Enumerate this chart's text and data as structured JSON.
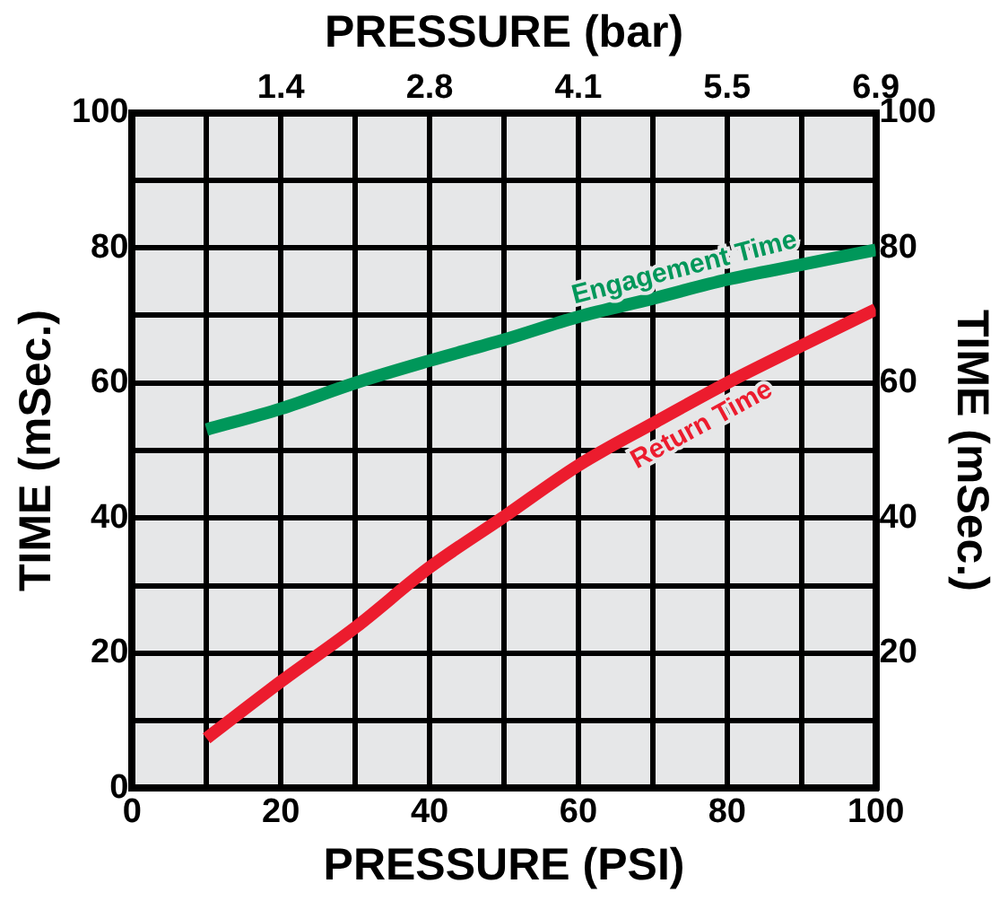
{
  "chart_data": {
    "type": "line",
    "xlabel": "PRESSURE (PSI)",
    "ylabel": "TIME (mSec.)",
    "y2label": "TIME (mSec.)",
    "x2label": "PRESSURE (bar)",
    "xlim": [
      0,
      100
    ],
    "xticks": [
      0,
      {
        "value": 10,
        "label": null
      },
      20,
      {
        "value": 30,
        "label": null
      },
      40,
      {
        "value": 50,
        "label": null
      },
      60,
      {
        "value": 70,
        "label": null
      },
      80,
      {
        "value": 90,
        "label": null
      },
      100
    ],
    "x2lim": [
      0,
      6.895
    ],
    "x2ticks": [
      {
        "value": 1.379,
        "label": "1.4"
      },
      {
        "value": 2.758,
        "label": "2.8"
      },
      {
        "value": 4.137,
        "label": "4.1"
      },
      {
        "value": 5.516,
        "label": "5.5"
      },
      {
        "value": 6.895,
        "label": "6.9"
      }
    ],
    "ylim": [
      0,
      100
    ],
    "yticks": [
      0,
      {
        "value": 10,
        "label": null
      },
      20,
      {
        "value": 30,
        "label": null
      },
      40,
      {
        "value": 50,
        "label": null
      },
      60,
      {
        "value": 70,
        "label": null
      },
      80,
      {
        "value": 90,
        "label": null
      },
      100
    ],
    "y2lim": [
      0,
      100
    ],
    "y2ticks": [
      {
        "value": 20,
        "label": "20"
      },
      {
        "value": 40,
        "label": "40"
      },
      {
        "value": 60,
        "label": "60"
      },
      {
        "value": 80,
        "label": "80"
      },
      {
        "value": 100,
        "label": "100"
      }
    ],
    "x": [
      10,
      20,
      30,
      40,
      50,
      60,
      70,
      80,
      90,
      100
    ],
    "series": [
      {
        "name": "Engagement Time",
        "color": "#00975a",
        "values": [
          53.1,
          56.2,
          60.0,
          63.3,
          66.4,
          69.8,
          72.5,
          75.3,
          77.5,
          79.7
        ]
      },
      {
        "name": "Return Time",
        "color": "#ec1c2e",
        "values": [
          7.4,
          15.8,
          23.8,
          32.7,
          40.2,
          47.8,
          54.0,
          60.0,
          65.5,
          70.9
        ]
      }
    ],
    "grid": true,
    "legend": false,
    "marker": "none",
    "line_style": "solid"
  }
}
